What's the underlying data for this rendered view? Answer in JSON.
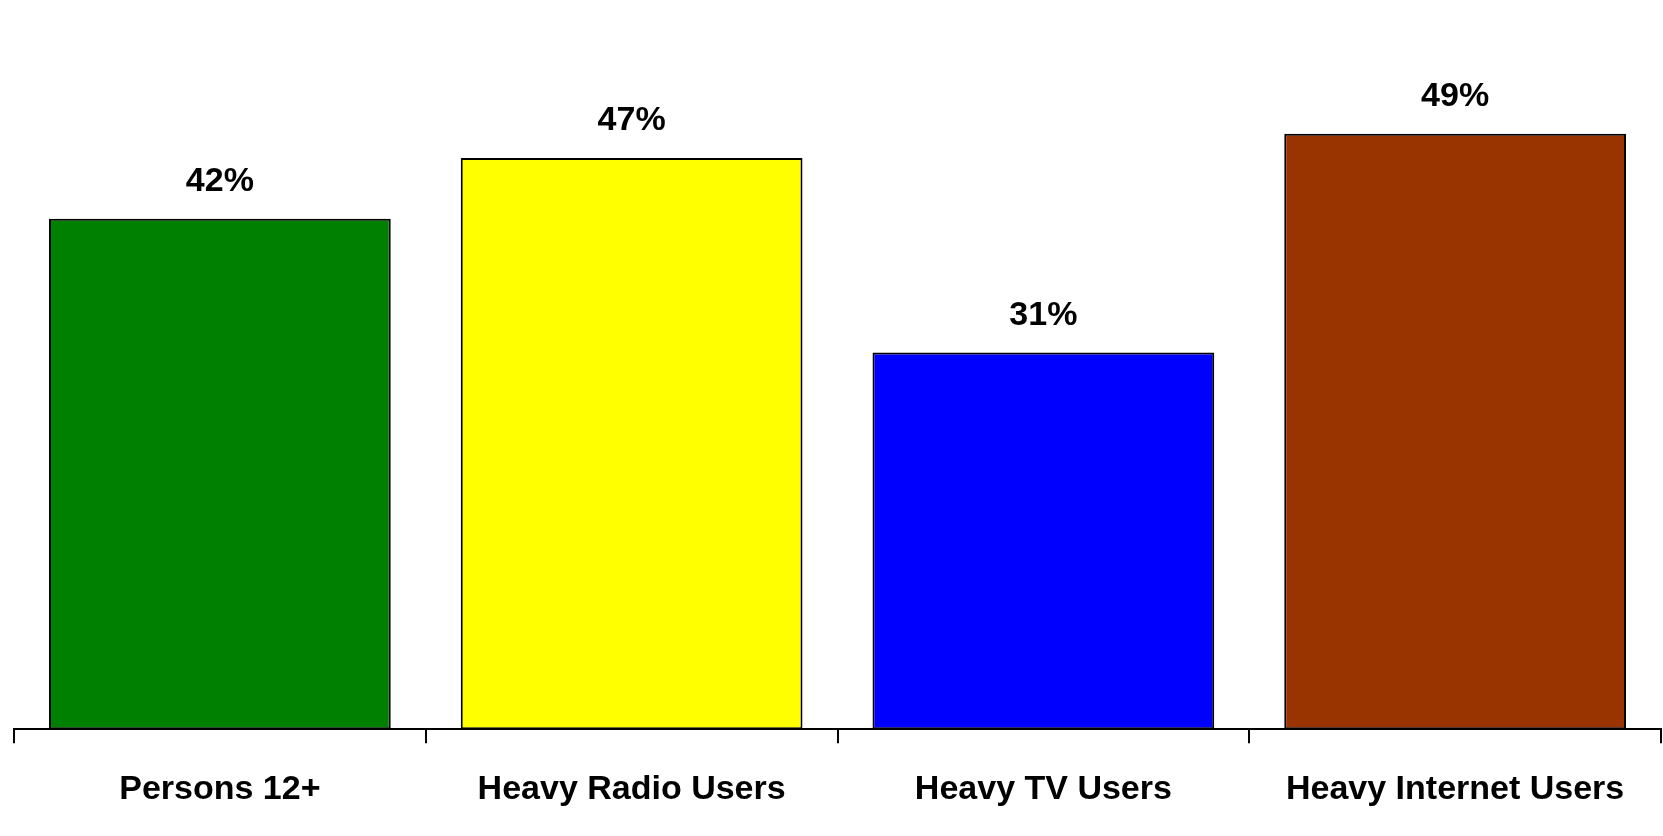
{
  "chart_data": {
    "type": "bar",
    "categories": [
      "Persons 12+",
      "Heavy Radio Users",
      "Heavy TV Users",
      "Heavy Internet Users"
    ],
    "values": [
      42,
      47,
      31,
      49
    ],
    "colors": [
      "#008000",
      "#ffff00",
      "#0000ff",
      "#993300"
    ],
    "value_labels": [
      "42%",
      "47%",
      "31%",
      "49%"
    ],
    "tick_labels": "x",
    "grid": false,
    "legend": false
  }
}
